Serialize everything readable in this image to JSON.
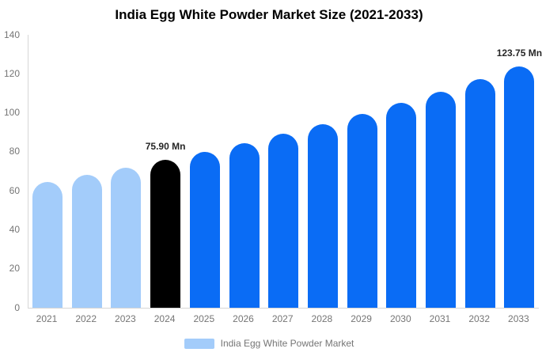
{
  "chart_data": {
    "type": "bar",
    "title": "India Egg White Powder Market Size (2021-2033)",
    "xlabel": "",
    "ylabel": "",
    "unit": "Mn",
    "categories": [
      "2021",
      "2022",
      "2023",
      "2024",
      "2025",
      "2026",
      "2027",
      "2028",
      "2029",
      "2030",
      "2031",
      "2032",
      "2033"
    ],
    "values": [
      64.49,
      68.08,
      71.88,
      75.9,
      80.13,
      84.6,
      89.32,
      94.3,
      99.55,
      105.1,
      110.96,
      117.15,
      123.75
    ],
    "point_labels": [
      "",
      "",
      "",
      "75.90 Mn",
      "",
      "",
      "",
      "",
      "",
      "",
      "",
      "",
      "123.75 Mn"
    ],
    "bar_colors": [
      "#a3ccfa",
      "#a3ccfa",
      "#a3ccfa",
      "#000000",
      "#0a6cf5",
      "#0a6cf5",
      "#0a6cf5",
      "#0a6cf5",
      "#0a6cf5",
      "#0a6cf5",
      "#0a6cf5",
      "#0a6cf5",
      "#0a6cf5"
    ],
    "ylim": [
      0,
      140
    ],
    "yticks": [
      0,
      20,
      40,
      60,
      80,
      100,
      120,
      140
    ],
    "grid": false,
    "legend": {
      "position": "bottom",
      "items": [
        {
          "label": "India Egg White Powder Market",
          "color": "#a3ccfa"
        }
      ]
    }
  },
  "colors": {
    "series_historic": "#a3ccfa",
    "series_base_year": "#000000",
    "series_forecast": "#0a6cf5",
    "axis_line": "#d6d6d6",
    "tick_text": "#757575",
    "title_text": "#000000",
    "value_label_text": "#262626",
    "background": "#ffffff"
  }
}
